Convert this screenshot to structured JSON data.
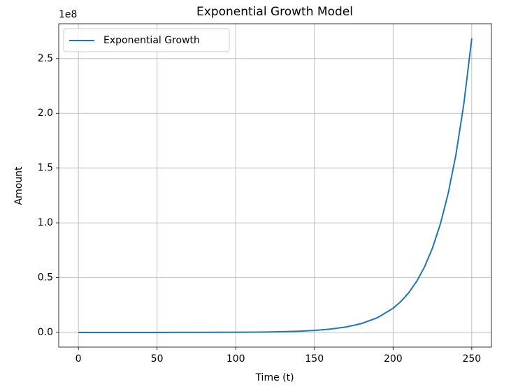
{
  "chart_data": {
    "type": "line",
    "title": "Exponential Growth Model",
    "x_label": "Time (t)",
    "y_label": "Amount",
    "y_offset_text": "1e8",
    "x": [
      0,
      10,
      20,
      30,
      40,
      50,
      60,
      70,
      80,
      90,
      100,
      110,
      120,
      130,
      140,
      150,
      160,
      170,
      180,
      190,
      200,
      205,
      210,
      215,
      220,
      225,
      230,
      235,
      240,
      245,
      250
    ],
    "series": [
      {
        "name": "Exponential Growth",
        "color": "#1f77b4",
        "values": [
          1000,
          1649,
          2718,
          4482,
          7389,
          12182,
          20086,
          33115,
          54598,
          90017,
          148413,
          244692,
          403429,
          665142,
          1096633,
          1808042,
          2980958,
          4914769,
          8103084,
          13359727,
          22026466,
          28282542,
          36315503,
          46630028,
          59874142,
          76879693,
          98715771,
          126753110,
          162754791,
          208981341,
          268337287
        ]
      }
    ],
    "xlim": [
      -12.5,
      262.5
    ],
    "xticks": [
      0,
      50,
      100,
      150,
      200,
      250
    ],
    "ylim": [
      -13416864,
      281754151
    ],
    "yticks": [
      {
        "value": 0,
        "label": "0.0"
      },
      {
        "value": 50000000,
        "label": "0.5"
      },
      {
        "value": 100000000,
        "label": "1.0"
      },
      {
        "value": 150000000,
        "label": "1.5"
      },
      {
        "value": 200000000,
        "label": "2.0"
      },
      {
        "value": 250000000,
        "label": "2.5"
      }
    ],
    "grid": true,
    "legend": "upper left"
  }
}
